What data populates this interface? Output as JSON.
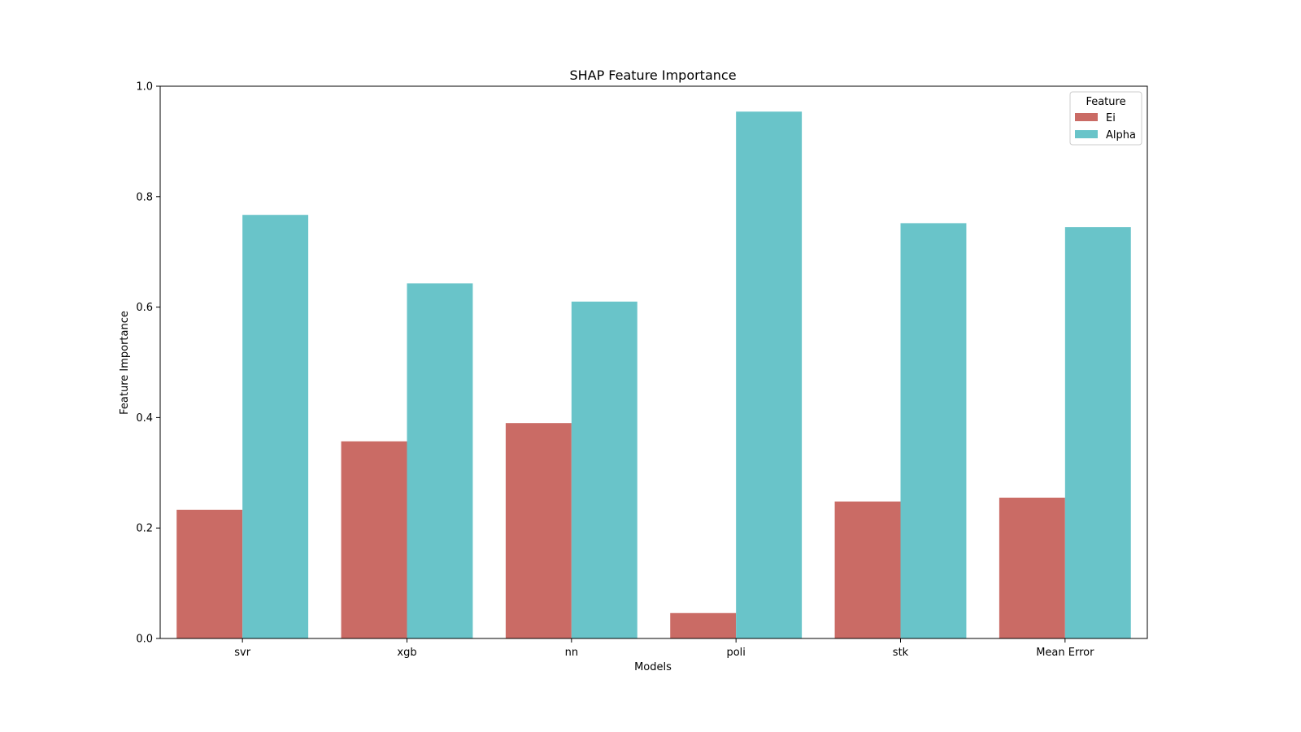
{
  "chart_data": {
    "type": "bar",
    "title": "SHAP Feature Importance",
    "xlabel": "Models",
    "ylabel": "Feature Importance",
    "categories": [
      "svr",
      "xgb",
      "nn",
      "poli",
      "stk",
      "Mean Error"
    ],
    "series": [
      {
        "name": "Ei",
        "values": [
          0.233,
          0.357,
          0.39,
          0.046,
          0.248,
          0.255
        ],
        "color": "#ca6b65"
      },
      {
        "name": "Alpha",
        "values": [
          0.767,
          0.643,
          0.61,
          0.954,
          0.752,
          0.745
        ],
        "color": "#69c4c9"
      }
    ],
    "ylim": [
      0,
      1.0
    ],
    "yticks": [
      "0.0",
      "0.2",
      "0.4",
      "0.6",
      "0.8",
      "1.0"
    ],
    "grid": false,
    "legend": {
      "title": "Feature",
      "placement": "top-right"
    }
  }
}
